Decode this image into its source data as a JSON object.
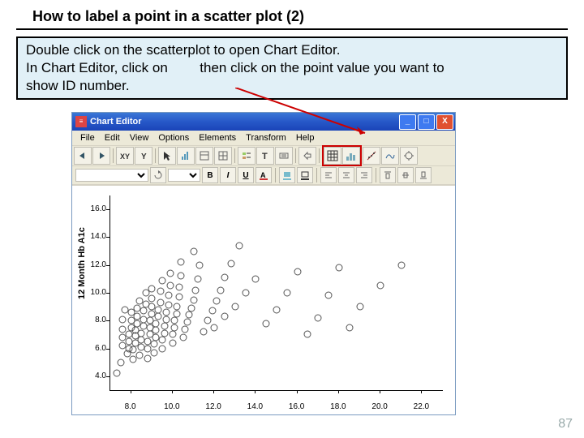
{
  "slide": {
    "title": "How to label a point in a scatter plot (2)",
    "instruction_line1": "Double click on the scatterplot to open Chart Editor.",
    "instruction_line2a": "In Chart Editor, click on",
    "instruction_line2b": "then click on the point value you want to",
    "instruction_line3": "show ID number.",
    "page_number": "87"
  },
  "window": {
    "title": "Chart Editor",
    "min_label": "_",
    "max_label": "□",
    "close_label": "X"
  },
  "menubar": {
    "items": [
      "File",
      "Edit",
      "View",
      "Options",
      "Elements",
      "Transform",
      "Help"
    ]
  },
  "toolbar2": {
    "font_empty": " ",
    "size_empty": " ",
    "b": "B",
    "i": "I",
    "u": "U"
  },
  "chart": {
    "type": "scatter",
    "y_label": "12 Month Hb A1c",
    "x_ticks": [
      8.0,
      10.0,
      12.0,
      14.0,
      16.0,
      18.0,
      20.0,
      22.0
    ],
    "y_ticks": [
      4.0,
      6.0,
      8.0,
      10.0,
      12.0,
      14.0,
      16.0
    ],
    "xlim": [
      7.0,
      23.0
    ],
    "ylim": [
      3.0,
      17.0
    ],
    "marker_color": "#555555",
    "background_color": "#ffffff",
    "points": [
      [
        7.3,
        4.2
      ],
      [
        7.5,
        5.0
      ],
      [
        7.6,
        6.2
      ],
      [
        7.6,
        6.8
      ],
      [
        7.6,
        7.4
      ],
      [
        7.6,
        8.1
      ],
      [
        7.7,
        8.8
      ],
      [
        7.8,
        5.6
      ],
      [
        7.9,
        6.0
      ],
      [
        7.9,
        6.5
      ],
      [
        7.9,
        7.0
      ],
      [
        8.0,
        7.5
      ],
      [
        8.0,
        8.0
      ],
      [
        8.0,
        8.6
      ],
      [
        8.1,
        5.2
      ],
      [
        8.1,
        5.9
      ],
      [
        8.2,
        6.4
      ],
      [
        8.2,
        6.9
      ],
      [
        8.2,
        7.3
      ],
      [
        8.3,
        7.8
      ],
      [
        8.3,
        8.3
      ],
      [
        8.3,
        8.9
      ],
      [
        8.4,
        9.4
      ],
      [
        8.4,
        5.5
      ],
      [
        8.5,
        6.1
      ],
      [
        8.5,
        6.6
      ],
      [
        8.5,
        7.1
      ],
      [
        8.6,
        7.6
      ],
      [
        8.6,
        8.1
      ],
      [
        8.6,
        8.7
      ],
      [
        8.7,
        9.2
      ],
      [
        8.7,
        10.0
      ],
      [
        8.8,
        5.3
      ],
      [
        8.8,
        6.0
      ],
      [
        8.8,
        6.5
      ],
      [
        8.9,
        7.0
      ],
      [
        8.9,
        7.5
      ],
      [
        8.9,
        8.0
      ],
      [
        9.0,
        8.5
      ],
      [
        9.0,
        9.0
      ],
      [
        9.0,
        9.6
      ],
      [
        9.0,
        10.3
      ],
      [
        9.1,
        5.7
      ],
      [
        9.1,
        6.3
      ],
      [
        9.2,
        6.8
      ],
      [
        9.2,
        7.3
      ],
      [
        9.2,
        7.8
      ],
      [
        9.3,
        8.3
      ],
      [
        9.3,
        8.8
      ],
      [
        9.4,
        9.3
      ],
      [
        9.4,
        10.1
      ],
      [
        9.5,
        10.9
      ],
      [
        9.5,
        6.0
      ],
      [
        9.5,
        6.6
      ],
      [
        9.6,
        7.1
      ],
      [
        9.6,
        7.6
      ],
      [
        9.7,
        8.1
      ],
      [
        9.7,
        8.6
      ],
      [
        9.8,
        9.1
      ],
      [
        9.8,
        9.8
      ],
      [
        9.9,
        10.5
      ],
      [
        9.9,
        11.4
      ],
      [
        10.0,
        6.4
      ],
      [
        10.0,
        7.0
      ],
      [
        10.1,
        7.5
      ],
      [
        10.1,
        8.0
      ],
      [
        10.2,
        8.5
      ],
      [
        10.2,
        9.0
      ],
      [
        10.3,
        9.7
      ],
      [
        10.3,
        10.4
      ],
      [
        10.4,
        11.2
      ],
      [
        10.4,
        12.2
      ],
      [
        10.5,
        6.8
      ],
      [
        10.6,
        7.4
      ],
      [
        10.7,
        7.9
      ],
      [
        10.8,
        8.4
      ],
      [
        10.9,
        8.9
      ],
      [
        11.0,
        9.5
      ],
      [
        11.1,
        10.2
      ],
      [
        11.2,
        11.0
      ],
      [
        11.3,
        12.0
      ],
      [
        11.5,
        7.2
      ],
      [
        11.7,
        8.0
      ],
      [
        11.9,
        8.7
      ],
      [
        12.1,
        9.4
      ],
      [
        12.3,
        10.2
      ],
      [
        12.5,
        11.1
      ],
      [
        12.8,
        12.1
      ],
      [
        13.2,
        13.4
      ],
      [
        11.0,
        13.0
      ],
      [
        12.0,
        7.5
      ],
      [
        12.5,
        8.3
      ],
      [
        13.0,
        9.0
      ],
      [
        13.5,
        10.0
      ],
      [
        14.0,
        11.0
      ],
      [
        14.5,
        7.8
      ],
      [
        15.0,
        8.8
      ],
      [
        15.5,
        10.0
      ],
      [
        16.0,
        11.5
      ],
      [
        16.5,
        7.0
      ],
      [
        17.0,
        8.2
      ],
      [
        17.5,
        9.8
      ],
      [
        18.0,
        11.8
      ],
      [
        18.5,
        7.5
      ],
      [
        19.0,
        9.0
      ],
      [
        20.0,
        10.5
      ],
      [
        21.0,
        12.0
      ]
    ]
  },
  "colors": {
    "titlebar_start": "#3b77d6",
    "titlebar_end": "#1a44b8",
    "window_bg": "#ece9d8",
    "instruction_bg": "#e1f0f7",
    "highlight": "#cc0000"
  }
}
